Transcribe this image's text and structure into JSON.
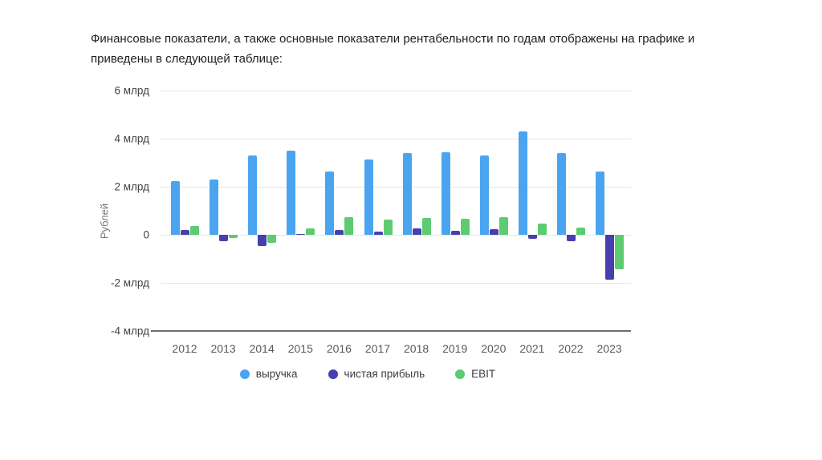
{
  "intro": {
    "lines": [
      "Финансовые показатели, а также основные показатели рентабельности по годам отображены на графике и",
      "приведены в следующей таблице:"
    ]
  },
  "chart_data": {
    "type": "bar",
    "title": "",
    "xlabel": "",
    "ylabel": "Рублей",
    "ylim": [
      -4,
      6
    ],
    "grid": true,
    "legend_position": "bottom",
    "y_ticks": [
      {
        "value": 6,
        "label": "6 млрд"
      },
      {
        "value": 4,
        "label": "4 млрд"
      },
      {
        "value": 2,
        "label": "2 млрд"
      },
      {
        "value": 0,
        "label": "0"
      },
      {
        "value": -2,
        "label": "-2 млрд"
      },
      {
        "value": -4,
        "label": "-4 млрд"
      }
    ],
    "categories": [
      "2012",
      "2013",
      "2014",
      "2015",
      "2016",
      "2017",
      "2018",
      "2019",
      "2020",
      "2021",
      "2022",
      "2023"
    ],
    "series": [
      {
        "name": "выручка",
        "color": "#4ba4ef",
        "values": [
          2.25,
          2.3,
          3.3,
          3.5,
          2.65,
          3.15,
          3.4,
          3.45,
          3.3,
          4.3,
          3.4,
          2.65
        ]
      },
      {
        "name": "чистая прибыль",
        "color": "#4540ae",
        "values": [
          0.2,
          -0.28,
          -0.45,
          0.03,
          0.2,
          0.15,
          0.28,
          0.18,
          0.22,
          -0.17,
          -0.28,
          -1.85
        ]
      },
      {
        "name": "EBIT",
        "color": "#5ccb72",
        "values": [
          0.37,
          -0.13,
          -0.33,
          0.28,
          0.72,
          0.62,
          0.7,
          0.66,
          0.75,
          0.47,
          0.31,
          -1.42
        ]
      }
    ],
    "units_note": "млрд"
  }
}
